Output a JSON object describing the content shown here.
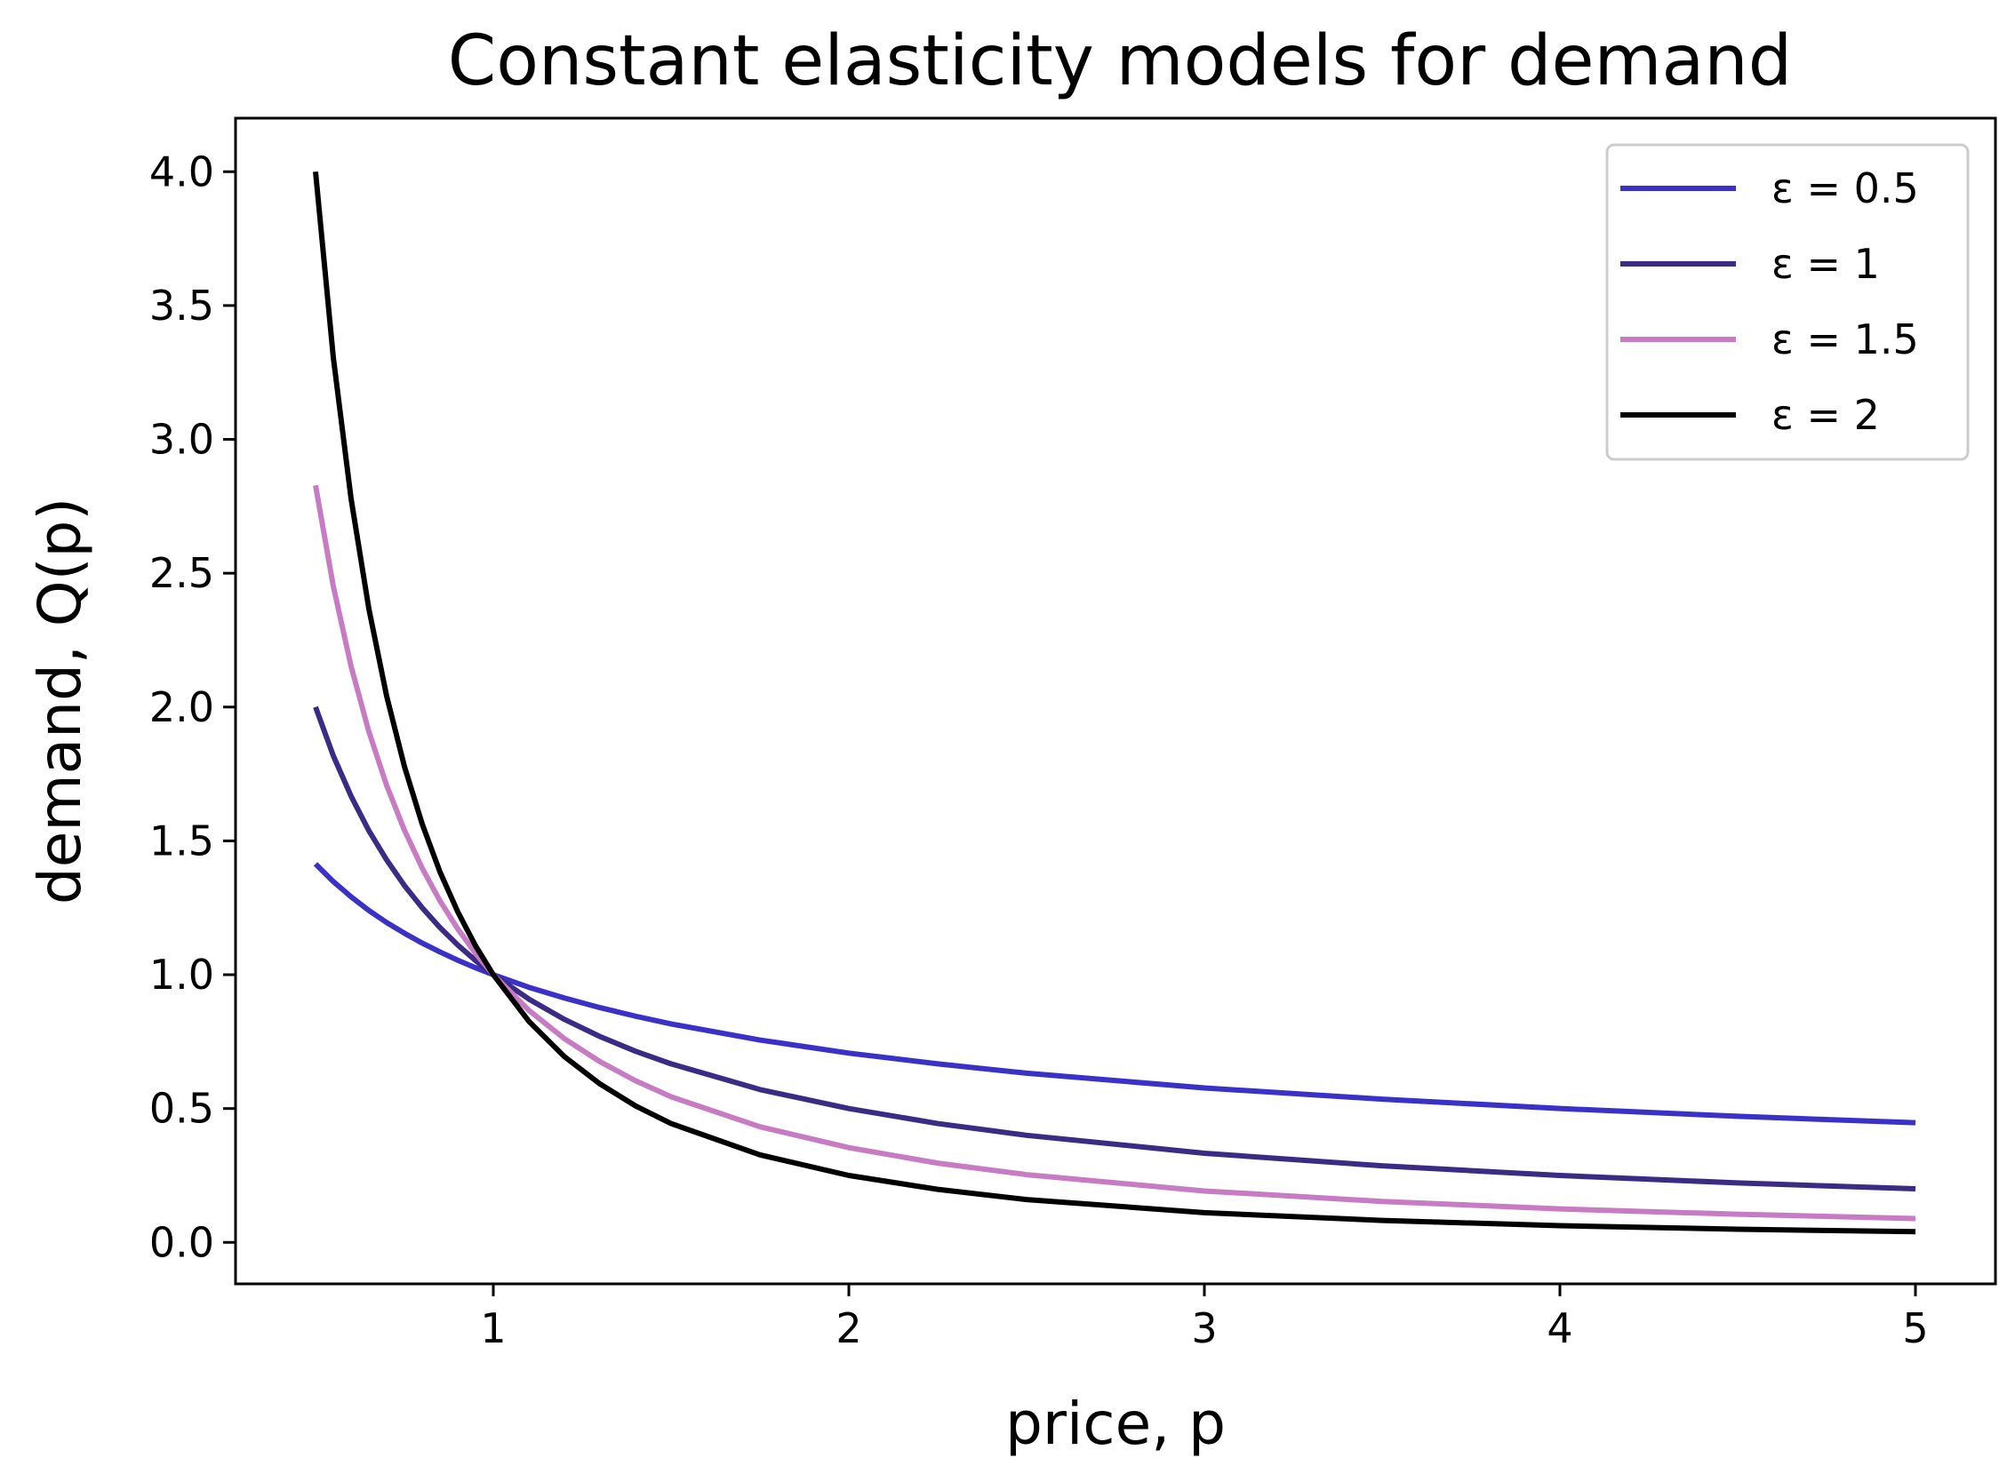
{
  "chart_data": {
    "type": "line",
    "title": "Constant elasticity models for demand",
    "xlabel": "price, p",
    "ylabel": "demand, Q(p)",
    "xlim": [
      0.275,
      5.225
    ],
    "ylim": [
      -0.155,
      4.2
    ],
    "xticks": [
      1,
      2,
      3,
      4,
      5
    ],
    "xtick_labels": [
      "1",
      "2",
      "3",
      "4",
      "5"
    ],
    "yticks": [
      0.0,
      0.5,
      1.0,
      1.5,
      2.0,
      2.5,
      3.0,
      3.5,
      4.0
    ],
    "ytick_labels": [
      "0.0",
      "0.5",
      "1.0",
      "1.5",
      "2.0",
      "2.5",
      "3.0",
      "3.5",
      "4.0"
    ],
    "grid": false,
    "legend_position": "top-right",
    "x": [
      0.5,
      0.55,
      0.6,
      0.65,
      0.7,
      0.75,
      0.8,
      0.85,
      0.9,
      0.95,
      1.0,
      1.1,
      1.2,
      1.3,
      1.4,
      1.5,
      1.75,
      2.0,
      2.25,
      2.5,
      3.0,
      3.5,
      4.0,
      4.5,
      5.0
    ],
    "series": [
      {
        "name": "ε = 0.5",
        "color": "#3a32c8",
        "values": [
          1.414,
          1.348,
          1.291,
          1.24,
          1.195,
          1.155,
          1.118,
          1.085,
          1.054,
          1.026,
          1.0,
          0.953,
          0.913,
          0.877,
          0.845,
          0.816,
          0.756,
          0.707,
          0.667,
          0.632,
          0.577,
          0.535,
          0.5,
          0.471,
          0.447
        ]
      },
      {
        "name": "ε = 1",
        "color": "#3b2b85",
        "values": [
          2.0,
          1.818,
          1.667,
          1.538,
          1.429,
          1.333,
          1.25,
          1.176,
          1.111,
          1.053,
          1.0,
          0.909,
          0.833,
          0.769,
          0.714,
          0.667,
          0.571,
          0.5,
          0.444,
          0.4,
          0.333,
          0.286,
          0.25,
          0.222,
          0.2
        ]
      },
      {
        "name": "ε = 1.5",
        "color": "#c77bc3",
        "values": [
          2.828,
          2.451,
          2.152,
          1.908,
          1.707,
          1.54,
          1.398,
          1.276,
          1.171,
          1.08,
          1.0,
          0.867,
          0.761,
          0.675,
          0.604,
          0.544,
          0.432,
          0.354,
          0.296,
          0.253,
          0.192,
          0.153,
          0.125,
          0.105,
          0.089
        ]
      },
      {
        "name": "ε = 2",
        "color": "#000000",
        "values": [
          4.0,
          3.306,
          2.778,
          2.367,
          2.041,
          1.778,
          1.563,
          1.384,
          1.235,
          1.108,
          1.0,
          0.826,
          0.694,
          0.592,
          0.51,
          0.444,
          0.327,
          0.25,
          0.198,
          0.16,
          0.111,
          0.082,
          0.0625,
          0.049,
          0.04
        ]
      }
    ]
  }
}
